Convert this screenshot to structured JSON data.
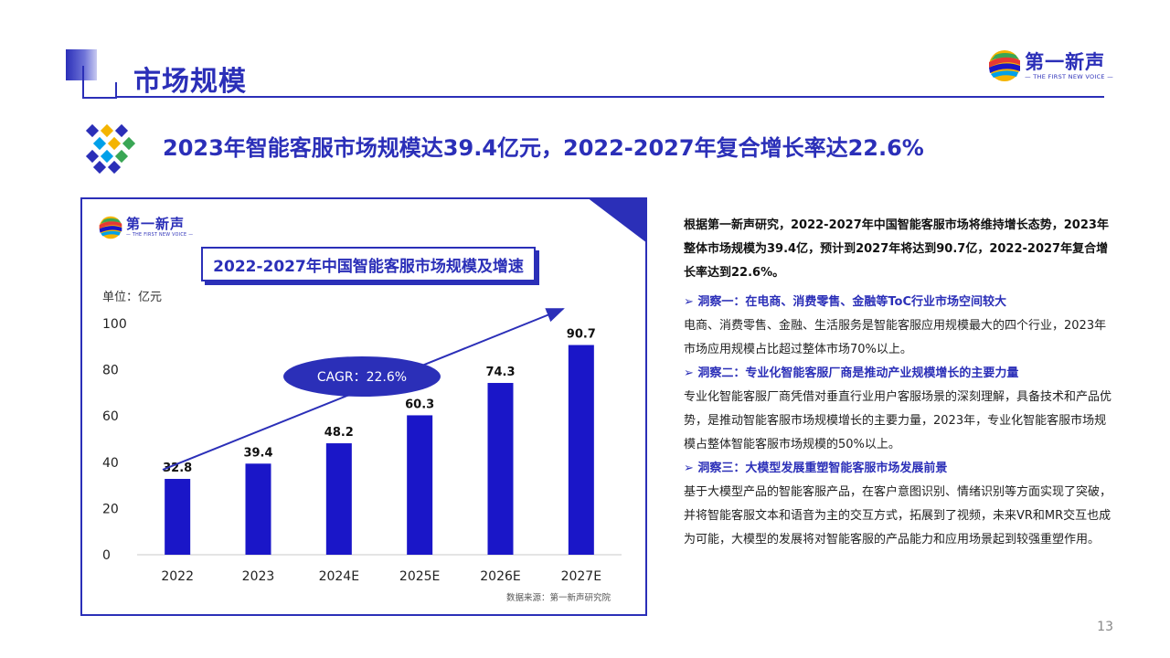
{
  "header": {
    "title": "市场规模",
    "brand_name": "第一新声",
    "brand_sub": "— THE FIRST NEW VOICE —"
  },
  "headline": "2023年智能客服市场规模达39.4亿元，2022-2027年复合增长率达22.6%",
  "chart_card": {
    "brand_name": "第一新声",
    "brand_sub": "— THE FIRST NEW VOICE —",
    "title": "2022-2027年中国智能客服市场规模及增速",
    "unit": "单位：亿元",
    "cagr_label": "CAGR：22.6%",
    "source": "数据来源：第一新声研究院"
  },
  "chart_data": {
    "type": "bar",
    "title": "2022-2027年中国智能客服市场规模及增速",
    "categories": [
      "2022",
      "2023",
      "2024E",
      "2025E",
      "2026E",
      "2027E"
    ],
    "values": [
      32.8,
      39.4,
      48.2,
      60.3,
      74.3,
      90.7
    ],
    "value_labels": [
      "32.8",
      "39.4",
      "48.2",
      "60.3",
      "74.3",
      "90.7"
    ],
    "ylabel": "单位：亿元",
    "ylim": [
      0,
      100
    ],
    "yticks": [
      0,
      20,
      40,
      60,
      80,
      100
    ],
    "annotation": "CAGR：22.6%",
    "bar_color": "#1a16c8"
  },
  "right_panel": {
    "intro": "根据第一新声研究，2022-2027年中国智能客服市场将维持增长态势，2023年整体市场规模为39.4亿，预计到2027年将达到90.7亿，2022-2027年复合增长率达到22.6%。",
    "insights": [
      {
        "head": "➢ 洞察一：在电商、消费零售、金融等ToC行业市场空间较大",
        "body": "电商、消费零售、金融、生活服务是智能客服应用规模最大的四个行业，2023年市场应用规模占比超过整体市场70%以上。"
      },
      {
        "head": "➢ 洞察二：专业化智能客服厂商是推动产业规模增长的主要力量",
        "body": "专业化智能客服厂商凭借对垂直行业用户客服场景的深刻理解，具备技术和产品优势，是推动智能客服市场规模增长的主要力量，2023年，专业化智能客服市场规模占整体智能客服市场规模的50%以上。"
      },
      {
        "head": "➢ 洞察三：大模型发展重塑智能客服市场发展前景",
        "body": "基于大模型产品的智能客服产品，在客户意图识别、情绪识别等方面实现了突破，并将智能客服文本和语音为主的交互方式，拓展到了视频，未来VR和MR交互也成为可能，大模型的发展将对智能客服的产品能力和应用场景起到较强重塑作用。"
      }
    ]
  },
  "page_number": "13",
  "colors": {
    "primary": "#2b2fb8",
    "bar": "#1a16c8"
  },
  "icons": [
    "logo-mark-icon",
    "diamond-cluster-icon",
    "arrow-bullet-icon"
  ]
}
